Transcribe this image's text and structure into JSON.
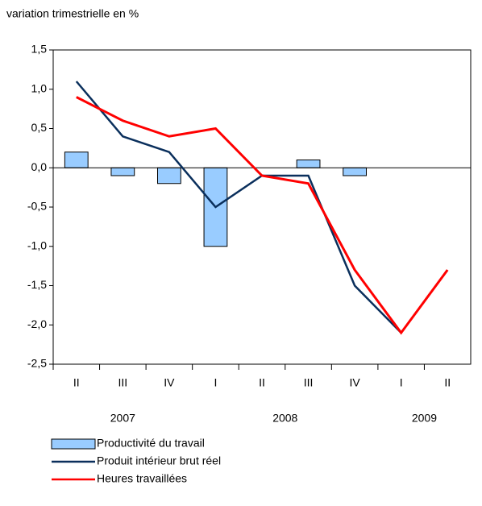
{
  "chart_data": {
    "type": "bar_line",
    "y_axis_label": "variation trimestrielle en %",
    "categories": [
      "II",
      "III",
      "IV",
      "I",
      "II",
      "III",
      "IV",
      "I",
      "II"
    ],
    "year_labels": [
      "2007",
      "2008",
      "2009"
    ],
    "ylim": [
      -2.5,
      1.5
    ],
    "yticks": [
      {
        "value": 1.5,
        "label": "1,5"
      },
      {
        "value": 1.0,
        "label": "1,0"
      },
      {
        "value": 0.5,
        "label": "0,5"
      },
      {
        "value": 0.0,
        "label": "0,0"
      },
      {
        "value": -0.5,
        "label": "-0,5"
      },
      {
        "value": -1.0,
        "label": "-1,0"
      },
      {
        "value": -1.5,
        "label": "-1,5"
      },
      {
        "value": -2.0,
        "label": "-2,0"
      },
      {
        "value": -2.5,
        "label": "-2,5"
      }
    ],
    "series": [
      {
        "name": "Productivité du travail",
        "type": "bar",
        "color": "#99ccff",
        "values": [
          0.2,
          -0.1,
          -0.2,
          -1.0,
          0.0,
          0.1,
          -0.1,
          null,
          null
        ]
      },
      {
        "name": "Produit intérieur brut réel",
        "type": "line",
        "color": "#0a2f5c",
        "values": [
          1.1,
          0.4,
          0.2,
          -0.5,
          -0.1,
          -0.1,
          -1.5,
          -2.1,
          null
        ]
      },
      {
        "name": "Heures travaillées",
        "type": "line",
        "color": "#ff0000",
        "values": [
          0.9,
          0.6,
          0.4,
          0.5,
          -0.1,
          -0.2,
          -1.3,
          -2.1,
          -1.3
        ]
      }
    ]
  }
}
